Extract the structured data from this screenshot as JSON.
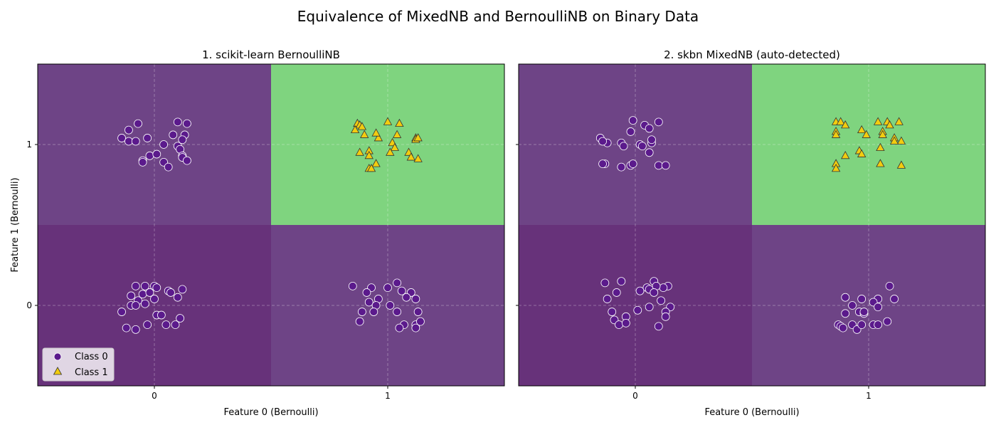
{
  "figure_title": "Equivalence of MixedNB and BernoulliNB on Binary Data",
  "colors": {
    "region_class0": "#6e4486",
    "region_class0_dark": "#67327a",
    "region_class1": "#7fd47f",
    "class0_marker": "#5b1a8c",
    "class1_marker": "#f2cc10"
  },
  "chart_data": [
    {
      "type": "scatter",
      "title": "1. scikit-learn BernoulliNB",
      "xlabel": "Feature 0 (Bernoulli)",
      "ylabel": "Feature 1 (Bernoulli)",
      "xlim": [
        -0.5,
        1.5
      ],
      "ylim": [
        -0.5,
        1.5
      ],
      "xticks": [
        {
          "value": 0,
          "label": "0"
        },
        {
          "value": 1,
          "label": "1"
        }
      ],
      "yticks": [
        {
          "value": 0,
          "label": "0"
        },
        {
          "value": 1,
          "label": "1"
        }
      ],
      "grid": true,
      "legend": {
        "placement": "lower-left",
        "entries": [
          "Class 0",
          "Class 1"
        ]
      },
      "regions": [
        {
          "x": [
            -0.5,
            0.5
          ],
          "y": [
            0.5,
            1.5
          ],
          "class": 0
        },
        {
          "x": [
            0.5,
            1.5
          ],
          "y": [
            0.5,
            1.5
          ],
          "class": 1
        },
        {
          "x": [
            -0.5,
            0.5
          ],
          "y": [
            -0.5,
            0.5
          ],
          "class": 0,
          "shade": "dark"
        },
        {
          "x": [
            0.5,
            1.5
          ],
          "y": [
            -0.5,
            0.5
          ],
          "class": 0
        }
      ],
      "series": [
        {
          "name": "Class 0",
          "marker": "circle",
          "points": [
            [
              -0.07,
              1.13
            ],
            [
              -0.11,
              1.09
            ],
            [
              -0.14,
              1.04
            ],
            [
              -0.11,
              1.02
            ],
            [
              -0.08,
              1.02
            ],
            [
              -0.03,
              1.04
            ],
            [
              0.1,
              1.14
            ],
            [
              0.14,
              1.13
            ],
            [
              0.13,
              1.06
            ],
            [
              0.12,
              1.03
            ],
            [
              0.04,
              1.0
            ],
            [
              0.08,
              1.06
            ],
            [
              0.1,
              0.99
            ],
            [
              0.11,
              0.97
            ],
            [
              0.12,
              0.93
            ],
            [
              0.12,
              0.92
            ],
            [
              0.14,
              0.9
            ],
            [
              -0.02,
              0.93
            ],
            [
              0.01,
              0.94
            ],
            [
              -0.05,
              0.9
            ],
            [
              -0.05,
              0.89
            ],
            [
              0.04,
              0.89
            ],
            [
              0.06,
              0.86
            ],
            [
              -0.08,
              0.12
            ],
            [
              -0.04,
              0.12
            ],
            [
              0.0,
              0.12
            ],
            [
              0.01,
              0.11
            ],
            [
              0.12,
              0.1
            ],
            [
              -0.1,
              0.06
            ],
            [
              -0.05,
              0.07
            ],
            [
              -0.02,
              0.08
            ],
            [
              0.06,
              0.09
            ],
            [
              0.07,
              0.08
            ],
            [
              -0.07,
              0.03
            ],
            [
              0.0,
              0.04
            ],
            [
              -0.1,
              0.0
            ],
            [
              -0.04,
              0.01
            ],
            [
              -0.14,
              -0.04
            ],
            [
              -0.08,
              0.0
            ],
            [
              0.01,
              -0.06
            ],
            [
              0.03,
              -0.06
            ],
            [
              0.1,
              0.05
            ],
            [
              0.11,
              -0.08
            ],
            [
              -0.03,
              -0.12
            ],
            [
              -0.12,
              -0.14
            ],
            [
              -0.08,
              -0.15
            ],
            [
              0.05,
              -0.12
            ],
            [
              0.09,
              -0.12
            ],
            [
              0.85,
              0.12
            ],
            [
              1.0,
              0.11
            ],
            [
              1.04,
              0.14
            ],
            [
              0.93,
              0.11
            ],
            [
              0.91,
              0.08
            ],
            [
              1.06,
              0.09
            ],
            [
              1.1,
              0.08
            ],
            [
              1.08,
              0.05
            ],
            [
              1.12,
              0.04
            ],
            [
              0.96,
              0.04
            ],
            [
              0.92,
              0.02
            ],
            [
              0.95,
              0.0
            ],
            [
              1.01,
              0.0
            ],
            [
              0.89,
              -0.04
            ],
            [
              0.94,
              -0.04
            ],
            [
              1.04,
              -0.04
            ],
            [
              1.13,
              -0.04
            ],
            [
              0.88,
              -0.1
            ],
            [
              1.07,
              -0.12
            ],
            [
              1.05,
              -0.14
            ],
            [
              1.12,
              -0.12
            ],
            [
              1.12,
              -0.14
            ],
            [
              1.14,
              -0.1
            ]
          ]
        },
        {
          "name": "Class 1",
          "marker": "triangle",
          "points": [
            [
              0.87,
              1.13
            ],
            [
              0.88,
              1.12
            ],
            [
              0.89,
              1.11
            ],
            [
              0.86,
              1.09
            ],
            [
              0.9,
              1.06
            ],
            [
              0.96,
              1.04
            ],
            [
              0.95,
              1.07
            ],
            [
              1.0,
              1.14
            ],
            [
              1.05,
              1.13
            ],
            [
              1.04,
              1.06
            ],
            [
              1.02,
              1.01
            ],
            [
              1.03,
              0.98
            ],
            [
              1.12,
              1.04
            ],
            [
              1.12,
              1.03
            ],
            [
              1.13,
              1.04
            ],
            [
              0.88,
              0.95
            ],
            [
              0.92,
              0.96
            ],
            [
              0.92,
              0.93
            ],
            [
              1.01,
              0.95
            ],
            [
              1.09,
              0.95
            ],
            [
              1.1,
              0.92
            ],
            [
              1.13,
              0.91
            ],
            [
              0.95,
              0.88
            ],
            [
              0.92,
              0.85
            ],
            [
              0.93,
              0.85
            ]
          ]
        }
      ]
    },
    {
      "type": "scatter",
      "title": "2. skbn MixedNB (auto-detected)",
      "xlabel": "Feature 0 (Bernoulli)",
      "ylabel": "",
      "xlim": [
        -0.5,
        1.5
      ],
      "ylim": [
        -0.5,
        1.5
      ],
      "xticks": [
        {
          "value": 0,
          "label": "0"
        },
        {
          "value": 1,
          "label": "1"
        }
      ],
      "yticks": [
        {
          "value": 0,
          "label": ""
        },
        {
          "value": 1,
          "label": ""
        }
      ],
      "grid": true,
      "regions": [
        {
          "x": [
            -0.5,
            0.5
          ],
          "y": [
            0.5,
            1.5
          ],
          "class": 0
        },
        {
          "x": [
            0.5,
            1.5
          ],
          "y": [
            0.5,
            1.5
          ],
          "class": 1
        },
        {
          "x": [
            -0.5,
            0.5
          ],
          "y": [
            -0.5,
            0.5
          ],
          "class": 0,
          "shade": "dark"
        },
        {
          "x": [
            0.5,
            1.5
          ],
          "y": [
            -0.5,
            0.5
          ],
          "class": 0
        }
      ],
      "series": [
        {
          "name": "Class 0",
          "marker": "circle",
          "points": [
            [
              -0.01,
              1.15
            ],
            [
              0.04,
              1.12
            ],
            [
              0.1,
              1.14
            ],
            [
              -0.02,
              1.08
            ],
            [
              0.06,
              1.1
            ],
            [
              -0.15,
              1.04
            ],
            [
              -0.12,
              1.01
            ],
            [
              -0.14,
              1.02
            ],
            [
              -0.06,
              1.01
            ],
            [
              -0.05,
              0.99
            ],
            [
              0.02,
              1.0
            ],
            [
              0.03,
              0.99
            ],
            [
              0.07,
              1.01
            ],
            [
              0.07,
              1.03
            ],
            [
              0.06,
              0.95
            ],
            [
              -0.13,
              0.88
            ],
            [
              -0.14,
              0.88
            ],
            [
              -0.06,
              0.86
            ],
            [
              -0.02,
              0.87
            ],
            [
              -0.01,
              0.88
            ],
            [
              0.1,
              0.87
            ],
            [
              0.13,
              0.87
            ],
            [
              -0.13,
              0.14
            ],
            [
              -0.06,
              0.15
            ],
            [
              0.08,
              0.15
            ],
            [
              0.14,
              0.12
            ],
            [
              0.12,
              0.11
            ],
            [
              0.09,
              0.12
            ],
            [
              0.05,
              0.11
            ],
            [
              0.02,
              0.09
            ],
            [
              0.06,
              0.1
            ],
            [
              0.08,
              0.08
            ],
            [
              -0.08,
              0.08
            ],
            [
              -0.12,
              0.04
            ],
            [
              0.11,
              0.03
            ],
            [
              -0.1,
              -0.04
            ],
            [
              0.01,
              -0.03
            ],
            [
              0.15,
              -0.01
            ],
            [
              0.13,
              -0.04
            ],
            [
              0.13,
              -0.07
            ],
            [
              -0.04,
              -0.07
            ],
            [
              -0.09,
              -0.09
            ],
            [
              -0.07,
              -0.12
            ],
            [
              -0.04,
              -0.11
            ],
            [
              0.06,
              -0.01
            ],
            [
              0.1,
              -0.13
            ],
            [
              1.09,
              0.12
            ],
            [
              0.9,
              0.05
            ],
            [
              0.97,
              0.04
            ],
            [
              1.04,
              0.04
            ],
            [
              1.11,
              0.04
            ],
            [
              1.02,
              0.02
            ],
            [
              0.93,
              0.0
            ],
            [
              1.04,
              -0.01
            ],
            [
              0.9,
              -0.05
            ],
            [
              0.96,
              -0.04
            ],
            [
              0.98,
              -0.05
            ],
            [
              0.98,
              -0.04
            ],
            [
              0.93,
              -0.12
            ],
            [
              0.87,
              -0.12
            ],
            [
              0.88,
              -0.13
            ],
            [
              0.89,
              -0.14
            ],
            [
              0.95,
              -0.15
            ],
            [
              0.97,
              -0.12
            ],
            [
              1.02,
              -0.12
            ],
            [
              1.04,
              -0.12
            ],
            [
              1.08,
              -0.1
            ]
          ]
        },
        {
          "name": "Class 1",
          "marker": "triangle",
          "points": [
            [
              0.86,
              1.14
            ],
            [
              0.88,
              1.14
            ],
            [
              0.9,
              1.12
            ],
            [
              1.04,
              1.14
            ],
            [
              1.08,
              1.14
            ],
            [
              1.09,
              1.12
            ],
            [
              1.13,
              1.14
            ],
            [
              0.86,
              1.08
            ],
            [
              0.86,
              1.06
            ],
            [
              0.97,
              1.09
            ],
            [
              0.99,
              1.06
            ],
            [
              1.06,
              1.08
            ],
            [
              1.06,
              1.06
            ],
            [
              1.11,
              1.04
            ],
            [
              1.14,
              1.02
            ],
            [
              1.11,
              1.02
            ],
            [
              1.05,
              0.98
            ],
            [
              0.96,
              0.96
            ],
            [
              0.97,
              0.94
            ],
            [
              0.9,
              0.93
            ],
            [
              1.05,
              0.88
            ],
            [
              1.14,
              0.87
            ],
            [
              0.86,
              0.88
            ],
            [
              0.86,
              0.85
            ]
          ]
        }
      ]
    }
  ]
}
